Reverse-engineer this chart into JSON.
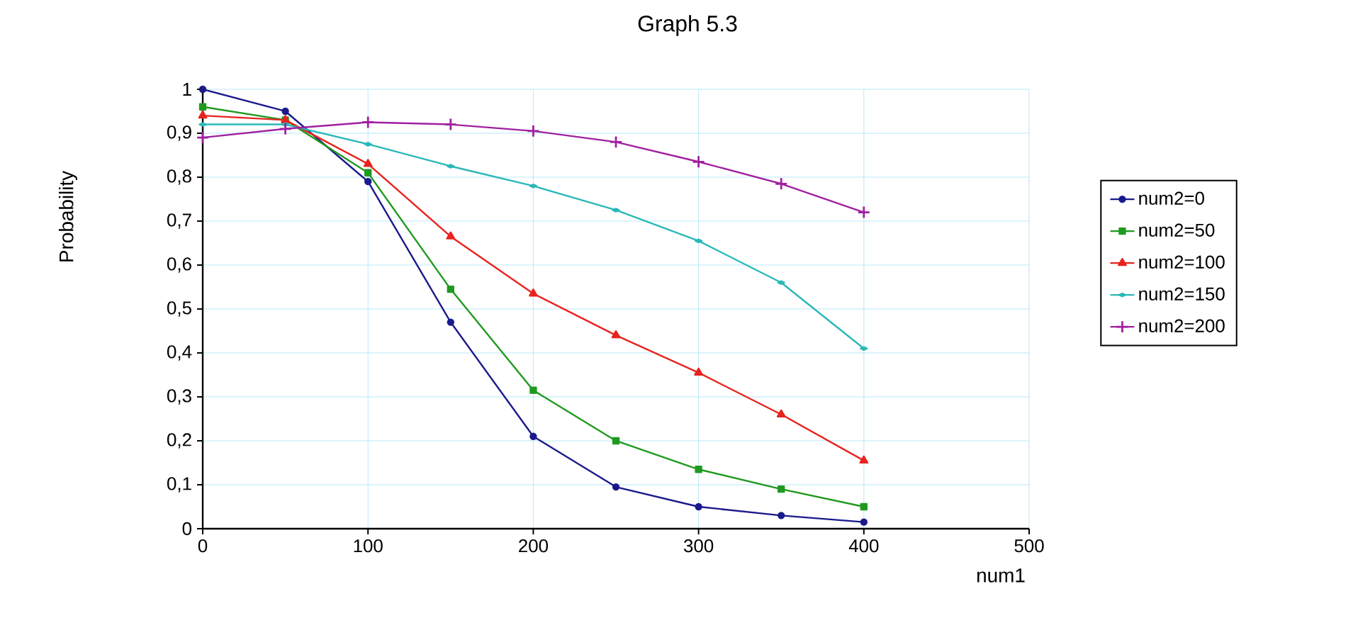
{
  "chart_data": {
    "type": "line",
    "title": "Graph 5.3",
    "xlabel": "num1",
    "ylabel": "Probability",
    "x": [
      0,
      50,
      100,
      150,
      200,
      250,
      300,
      350,
      400
    ],
    "series": [
      {
        "name": "num2=0",
        "color": "#1a1a8c",
        "marker": "circle",
        "values": [
          1.0,
          0.95,
          0.79,
          0.47,
          0.21,
          0.095,
          0.05,
          0.03,
          0.015
        ]
      },
      {
        "name": "num2=50",
        "color": "#1f9a1f",
        "marker": "square",
        "values": [
          0.96,
          0.93,
          0.81,
          0.545,
          0.315,
          0.2,
          0.135,
          0.09,
          0.05
        ]
      },
      {
        "name": "num2=100",
        "color": "#e8231e",
        "marker": "triangle",
        "values": [
          0.94,
          0.93,
          0.83,
          0.665,
          0.535,
          0.44,
          0.355,
          0.26,
          0.155
        ]
      },
      {
        "name": "num2=150",
        "color": "#2ab8b8",
        "marker": "diamond",
        "values": [
          0.92,
          0.92,
          0.875,
          0.825,
          0.78,
          0.725,
          0.655,
          0.56,
          0.41
        ]
      },
      {
        "name": "num2=200",
        "color": "#a020a0",
        "marker": "cross",
        "values": [
          0.89,
          0.91,
          0.925,
          0.92,
          0.905,
          0.88,
          0.835,
          0.785,
          0.72
        ]
      }
    ],
    "xlim": [
      0,
      500
    ],
    "xticks": [
      0,
      100,
      200,
      300,
      400,
      500
    ],
    "ylim": [
      0,
      1
    ],
    "yticks": [
      {
        "value": 0,
        "label": "0"
      },
      {
        "value": 0.1,
        "label": "0,1"
      },
      {
        "value": 0.2,
        "label": "0,2"
      },
      {
        "value": 0.3,
        "label": "0,3"
      },
      {
        "value": 0.4,
        "label": "0,4"
      },
      {
        "value": 0.5,
        "label": "0,5"
      },
      {
        "value": 0.6,
        "label": "0,6"
      },
      {
        "value": 0.7,
        "label": "0,7"
      },
      {
        "value": 0.8,
        "label": "0,8"
      },
      {
        "value": 0.9,
        "label": "0,9"
      },
      {
        "value": 1,
        "label": "1"
      }
    ],
    "grid": true,
    "legend": "right",
    "line_style": "solid"
  }
}
